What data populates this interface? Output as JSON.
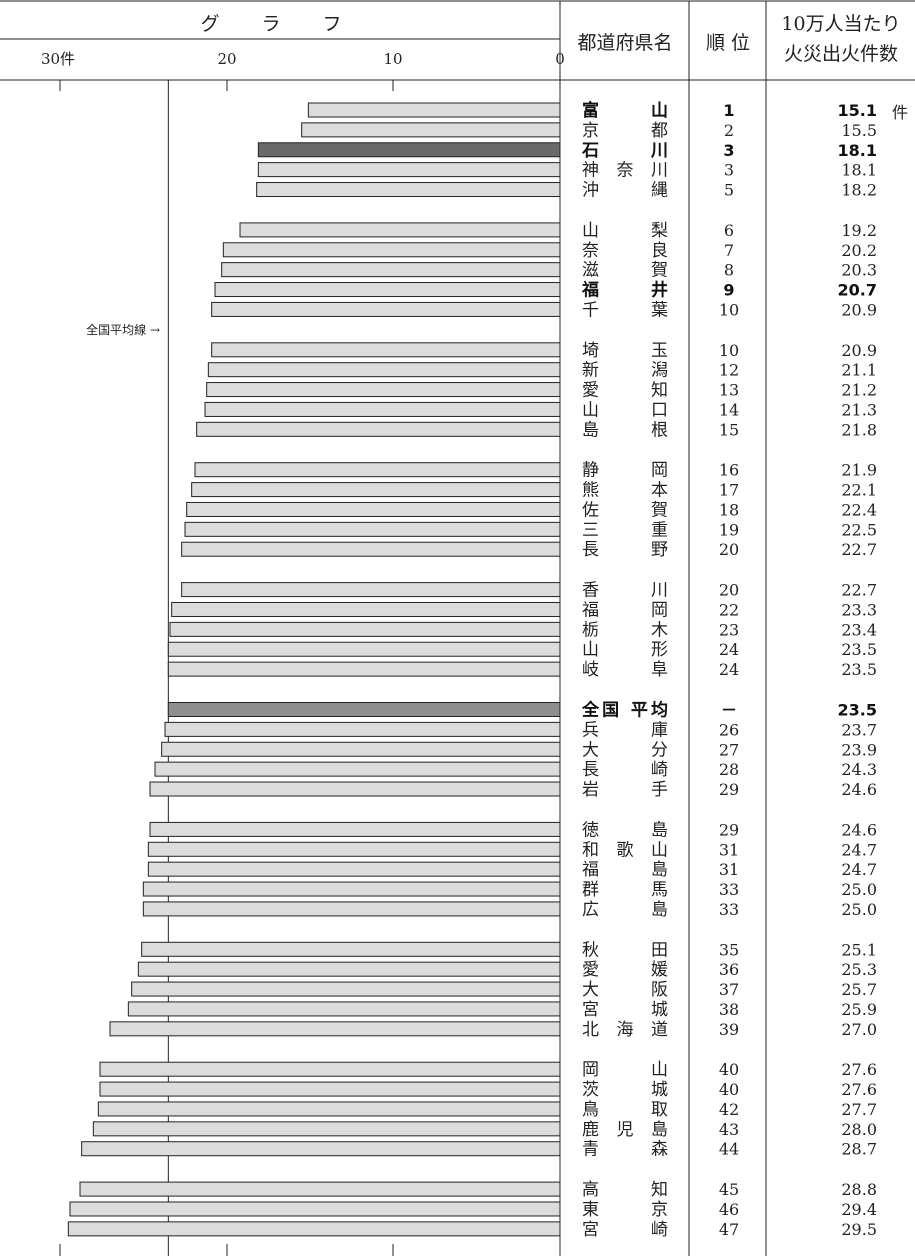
{
  "header": {
    "graph_title": "グ ラ フ",
    "pref_header": "都道府県名",
    "rank_header": "順 位",
    "value_header_line1": "10万人当たり",
    "value_header_line2": "火災出火件数",
    "unit_label": "件",
    "average_line_label": "全国平均線 →"
  },
  "axis_ticks": [
    "30件",
    "20",
    "10",
    "0"
  ],
  "chart_data": {
    "type": "bar",
    "orientation": "horizontal-right-anchored",
    "xlim": [
      0,
      30
    ],
    "average": 23.5,
    "categories": [
      "富山",
      "京都",
      "石川",
      "神奈川",
      "沖縄",
      "山梨",
      "奈良",
      "滋賀",
      "福井",
      "千葉",
      "埼玉",
      "新潟",
      "愛知",
      "山口",
      "島根",
      "静岡",
      "熊本",
      "佐賀",
      "三重",
      "長野",
      "香川",
      "福岡",
      "栃木",
      "山形",
      "岐阜",
      "全国平均",
      "兵庫",
      "大分",
      "長崎",
      "岩手",
      "徳島",
      "和歌山",
      "福島",
      "群馬",
      "広島",
      "秋田",
      "愛媛",
      "大阪",
      "宮城",
      "北海道",
      "岡山",
      "茨城",
      "鳥取",
      "鹿児島",
      "青森",
      "高知",
      "東京",
      "宮崎"
    ],
    "values": [
      15.1,
      15.5,
      18.1,
      18.1,
      18.2,
      19.2,
      20.2,
      20.3,
      20.7,
      20.9,
      20.9,
      21.1,
      21.2,
      21.3,
      21.8,
      21.9,
      22.1,
      22.4,
      22.5,
      22.7,
      22.7,
      23.3,
      23.4,
      23.5,
      23.5,
      23.5,
      23.7,
      23.9,
      24.3,
      24.6,
      24.6,
      24.7,
      24.7,
      25.0,
      25.0,
      25.1,
      25.3,
      25.7,
      25.9,
      27.0,
      27.6,
      27.6,
      27.7,
      28.0,
      28.7,
      28.8,
      29.4,
      29.5
    ]
  },
  "rows": [
    {
      "pref": "富山",
      "rank": "1",
      "value": "15.1",
      "bold": true,
      "bar": "normal"
    },
    {
      "pref": "京都",
      "rank": "2",
      "value": "15.5",
      "bar": "normal"
    },
    {
      "pref": "石川",
      "rank": "3",
      "value": "18.1",
      "bold": true,
      "bar": "highlight"
    },
    {
      "pref": "神奈川",
      "rank": "3",
      "value": "18.1",
      "bar": "normal"
    },
    {
      "pref": "沖縄",
      "rank": "5",
      "value": "18.2",
      "bar": "normal"
    },
    {
      "pref": "山梨",
      "rank": "6",
      "value": "19.2",
      "bar": "normal"
    },
    {
      "pref": "奈良",
      "rank": "7",
      "value": "20.2",
      "bar": "normal"
    },
    {
      "pref": "滋賀",
      "rank": "8",
      "value": "20.3",
      "bar": "normal"
    },
    {
      "pref": "福井",
      "rank": "9",
      "value": "20.7",
      "bold": true,
      "bar": "normal"
    },
    {
      "pref": "千葉",
      "rank": "10",
      "value": "20.9",
      "bar": "normal"
    },
    {
      "pref": "埼玉",
      "rank": "10",
      "value": "20.9",
      "bar": "normal"
    },
    {
      "pref": "新潟",
      "rank": "12",
      "value": "21.1",
      "bar": "normal"
    },
    {
      "pref": "愛知",
      "rank": "13",
      "value": "21.2",
      "bar": "normal"
    },
    {
      "pref": "山口",
      "rank": "14",
      "value": "21.3",
      "bar": "normal"
    },
    {
      "pref": "島根",
      "rank": "15",
      "value": "21.8",
      "bar": "normal"
    },
    {
      "pref": "静岡",
      "rank": "16",
      "value": "21.9",
      "bar": "normal"
    },
    {
      "pref": "熊本",
      "rank": "17",
      "value": "22.1",
      "bar": "normal"
    },
    {
      "pref": "佐賀",
      "rank": "18",
      "value": "22.4",
      "bar": "normal"
    },
    {
      "pref": "三重",
      "rank": "19",
      "value": "22.5",
      "bar": "normal"
    },
    {
      "pref": "長野",
      "rank": "20",
      "value": "22.7",
      "bar": "normal"
    },
    {
      "pref": "香川",
      "rank": "20",
      "value": "22.7",
      "bar": "normal"
    },
    {
      "pref": "福岡",
      "rank": "22",
      "value": "23.3",
      "bar": "normal"
    },
    {
      "pref": "栃木",
      "rank": "23",
      "value": "23.4",
      "bar": "normal"
    },
    {
      "pref": "山形",
      "rank": "24",
      "value": "23.5",
      "bar": "normal"
    },
    {
      "pref": "岐阜",
      "rank": "24",
      "value": "23.5",
      "bar": "normal"
    },
    {
      "pref": "全国平均",
      "rank": "－",
      "value": "23.5",
      "bold": true,
      "bar": "average"
    },
    {
      "pref": "兵庫",
      "rank": "26",
      "value": "23.7",
      "bar": "normal"
    },
    {
      "pref": "大分",
      "rank": "27",
      "value": "23.9",
      "bar": "normal"
    },
    {
      "pref": "長崎",
      "rank": "28",
      "value": "24.3",
      "bar": "normal"
    },
    {
      "pref": "岩手",
      "rank": "29",
      "value": "24.6",
      "bar": "normal"
    },
    {
      "pref": "徳島",
      "rank": "29",
      "value": "24.6",
      "bar": "normal"
    },
    {
      "pref": "和歌山",
      "rank": "31",
      "value": "24.7",
      "bar": "normal"
    },
    {
      "pref": "福島",
      "rank": "31",
      "value": "24.7",
      "bar": "normal"
    },
    {
      "pref": "群馬",
      "rank": "33",
      "value": "25.0",
      "bar": "normal"
    },
    {
      "pref": "広島",
      "rank": "33",
      "value": "25.0",
      "bar": "normal"
    },
    {
      "pref": "秋田",
      "rank": "35",
      "value": "25.1",
      "bar": "normal"
    },
    {
      "pref": "愛媛",
      "rank": "36",
      "value": "25.3",
      "bar": "normal"
    },
    {
      "pref": "大阪",
      "rank": "37",
      "value": "25.7",
      "bar": "normal"
    },
    {
      "pref": "宮城",
      "rank": "38",
      "value": "25.9",
      "bar": "normal"
    },
    {
      "pref": "北海道",
      "rank": "39",
      "value": "27.0",
      "bar": "normal"
    },
    {
      "pref": "岡山",
      "rank": "40",
      "value": "27.6",
      "bar": "normal"
    },
    {
      "pref": "茨城",
      "rank": "40",
      "value": "27.6",
      "bar": "normal"
    },
    {
      "pref": "鳥取",
      "rank": "42",
      "value": "27.7",
      "bar": "normal"
    },
    {
      "pref": "鹿児島",
      "rank": "43",
      "value": "28.0",
      "bar": "normal"
    },
    {
      "pref": "青森",
      "rank": "44",
      "value": "28.7",
      "bar": "normal"
    },
    {
      "pref": "高知",
      "rank": "45",
      "value": "28.8",
      "bar": "normal"
    },
    {
      "pref": "東京",
      "rank": "46",
      "value": "29.4",
      "bar": "normal"
    },
    {
      "pref": "宮崎",
      "rank": "47",
      "value": "29.5",
      "bar": "normal"
    }
  ]
}
